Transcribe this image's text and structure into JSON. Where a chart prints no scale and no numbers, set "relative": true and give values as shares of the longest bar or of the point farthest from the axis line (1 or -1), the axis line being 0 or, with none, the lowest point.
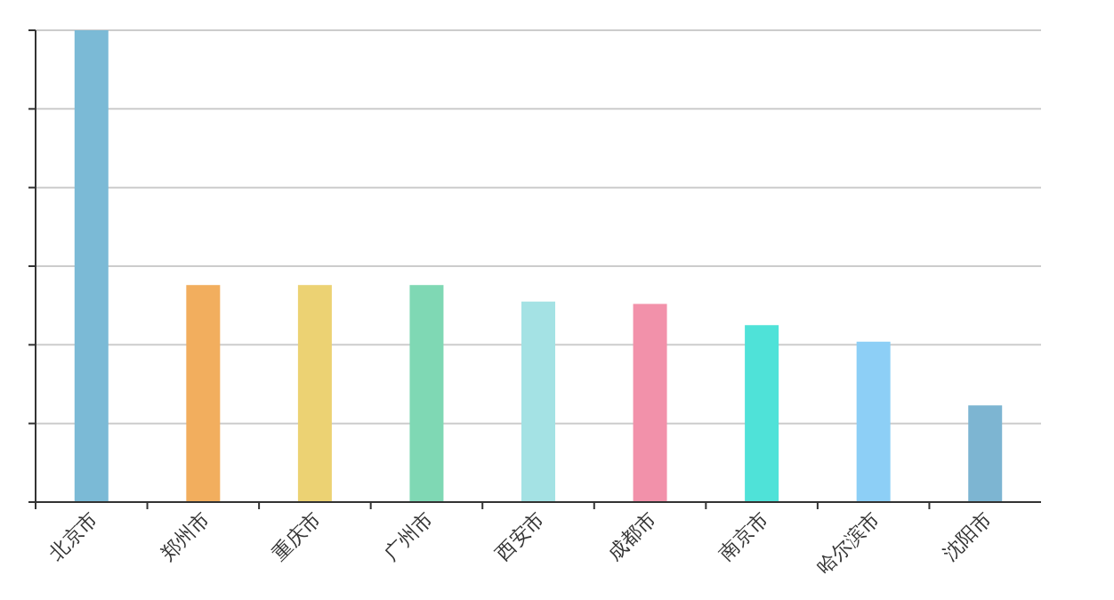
{
  "chart_data": {
    "type": "bar",
    "relative": true,
    "grid": "y",
    "categories": [
      "北京市",
      "郑州市",
      "重庆市",
      "广州市",
      "西安市",
      "成都市",
      "南京市",
      "哈尔滨市",
      "沈阳市"
    ],
    "values": [
      1.0,
      0.46,
      0.46,
      0.46,
      0.425,
      0.42,
      0.375,
      0.34,
      0.205
    ],
    "colors": [
      "#7bbad6",
      "#f2ae5e",
      "#ecd273",
      "#7fd8b4",
      "#a4e2e4",
      "#f291aa",
      "#4fe2d8",
      "#8dcff6",
      "#7db5d2"
    ]
  }
}
